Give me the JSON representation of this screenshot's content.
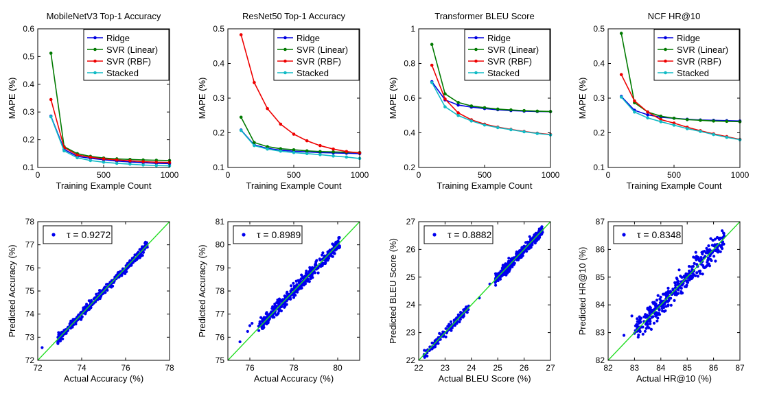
{
  "colors": {
    "Ridge": "#0000e0",
    "SVR (Linear)": "#007a00",
    "SVR (RBF)": "#ee0000",
    "Stacked": "#11bbc6",
    "scatter_points": "#0000ee",
    "identity_line": "#22dd22"
  },
  "chart_data": [
    {
      "type": "line",
      "title": "MobileNetV3 Top-1 Accuracy",
      "xlabel": "Training Example Count",
      "ylabel": "MAPE (%)",
      "xlim": [
        0,
        1000
      ],
      "ylim": [
        0.1,
        0.6
      ],
      "xticks": [
        0,
        500,
        1000
      ],
      "yticks": [
        0.1,
        0.2,
        0.3,
        0.4,
        0.5,
        0.6
      ],
      "grid": false,
      "legend": "top-right",
      "x": [
        100,
        200,
        300,
        400,
        500,
        600,
        700,
        800,
        900,
        1000
      ],
      "series": [
        {
          "name": "Ridge",
          "values": [
            0.285,
            0.165,
            0.14,
            0.133,
            0.128,
            0.123,
            0.12,
            0.117,
            0.115,
            0.114
          ]
        },
        {
          "name": "SVR (Linear)",
          "values": [
            0.512,
            0.175,
            0.15,
            0.14,
            0.134,
            0.131,
            0.129,
            0.127,
            0.126,
            0.125
          ]
        },
        {
          "name": "SVR (RBF)",
          "values": [
            0.345,
            0.172,
            0.145,
            0.137,
            0.131,
            0.127,
            0.124,
            0.121,
            0.119,
            0.118
          ]
        },
        {
          "name": "Stacked",
          "values": [
            0.283,
            0.16,
            0.135,
            0.125,
            0.119,
            0.115,
            0.112,
            0.109,
            0.107,
            0.106
          ]
        }
      ]
    },
    {
      "type": "line",
      "title": "ResNet50 Top-1 Accuracy",
      "xlabel": "Training Example Count",
      "ylabel": "MAPE (%)",
      "xlim": [
        0,
        1000
      ],
      "ylim": [
        0.1,
        0.5
      ],
      "xticks": [
        0,
        500,
        1000
      ],
      "yticks": [
        0.1,
        0.2,
        0.3,
        0.4,
        0.5
      ],
      "grid": false,
      "legend": "top-right",
      "x": [
        100,
        200,
        300,
        400,
        500,
        600,
        700,
        800,
        900,
        1000
      ],
      "series": [
        {
          "name": "Ridge",
          "values": [
            0.208,
            0.165,
            0.155,
            0.15,
            0.147,
            0.145,
            0.143,
            0.142,
            0.141,
            0.14
          ]
        },
        {
          "name": "SVR (Linear)",
          "values": [
            0.245,
            0.172,
            0.16,
            0.154,
            0.151,
            0.148,
            0.146,
            0.145,
            0.144,
            0.143
          ]
        },
        {
          "name": "SVR (RBF)",
          "values": [
            0.483,
            0.345,
            0.27,
            0.225,
            0.196,
            0.177,
            0.163,
            0.153,
            0.146,
            0.142
          ]
        },
        {
          "name": "Stacked",
          "values": [
            0.207,
            0.163,
            0.153,
            0.147,
            0.143,
            0.14,
            0.137,
            0.133,
            0.13,
            0.126
          ]
        }
      ]
    },
    {
      "type": "line",
      "title": "Transformer BLEU Score",
      "xlabel": "Training Example Count",
      "ylabel": "MAPE (%)",
      "xlim": [
        0,
        1000
      ],
      "ylim": [
        0.2,
        1.0
      ],
      "xticks": [
        0,
        500,
        1000
      ],
      "yticks": [
        0.2,
        0.4,
        0.6,
        0.8,
        1.0
      ],
      "grid": false,
      "legend": "top-right",
      "x": [
        100,
        200,
        300,
        400,
        500,
        600,
        700,
        800,
        900,
        1000
      ],
      "series": [
        {
          "name": "Ridge",
          "values": [
            0.695,
            0.59,
            0.56,
            0.548,
            0.54,
            0.533,
            0.528,
            0.525,
            0.523,
            0.522
          ]
        },
        {
          "name": "SVR (Linear)",
          "values": [
            0.91,
            0.625,
            0.575,
            0.555,
            0.545,
            0.537,
            0.532,
            0.528,
            0.525,
            0.523
          ]
        },
        {
          "name": "SVR (RBF)",
          "values": [
            0.79,
            0.595,
            0.515,
            0.475,
            0.45,
            0.433,
            0.42,
            0.408,
            0.398,
            0.39
          ]
        },
        {
          "name": "Stacked",
          "values": [
            0.69,
            0.55,
            0.5,
            0.468,
            0.445,
            0.43,
            0.418,
            0.406,
            0.396,
            0.388
          ]
        }
      ]
    },
    {
      "type": "line",
      "title": "NCF HR@10",
      "xlabel": "Training Example Count",
      "ylabel": "MAPE (%)",
      "xlim": [
        0,
        1000
      ],
      "ylim": [
        0.1,
        0.5
      ],
      "xticks": [
        0,
        500,
        1000
      ],
      "yticks": [
        0.1,
        0.2,
        0.3,
        0.4,
        0.5
      ],
      "grid": false,
      "legend": "top-right",
      "x": [
        100,
        200,
        300,
        400,
        500,
        600,
        700,
        800,
        900,
        1000
      ],
      "series": [
        {
          "name": "Ridge",
          "values": [
            0.305,
            0.265,
            0.252,
            0.245,
            0.242,
            0.239,
            0.237,
            0.236,
            0.235,
            0.234
          ]
        },
        {
          "name": "SVR (Linear)",
          "values": [
            0.487,
            0.287,
            0.26,
            0.248,
            0.242,
            0.238,
            0.236,
            0.234,
            0.233,
            0.232
          ]
        },
        {
          "name": "SVR (RBF)",
          "values": [
            0.368,
            0.292,
            0.26,
            0.238,
            0.228,
            0.216,
            0.206,
            0.197,
            0.189,
            0.181
          ]
        },
        {
          "name": "Stacked",
          "values": [
            0.303,
            0.26,
            0.243,
            0.232,
            0.222,
            0.212,
            0.204,
            0.195,
            0.187,
            0.18
          ]
        }
      ]
    },
    {
      "type": "scatter",
      "xlabel": "Actual Accuracy (%)",
      "ylabel": "Predicted Accuracy (%)",
      "xlim": [
        72,
        78
      ],
      "ylim": [
        72,
        78
      ],
      "xticks": [
        72,
        74,
        76,
        78
      ],
      "yticks": [
        72,
        73,
        74,
        75,
        76,
        77,
        78
      ],
      "grid": false,
      "legend": "top-left",
      "legend_label": "τ = 0.9272",
      "identity_line": true,
      "distribution": {
        "x_range": [
          72.9,
          77.0
        ],
        "noise_sd": 0.09,
        "count": 380
      },
      "outliers": [
        [
          72.2,
          72.55
        ],
        [
          72.95,
          73.2
        ],
        [
          73.2,
          73.3
        ]
      ]
    },
    {
      "type": "scatter",
      "xlabel": "Actual Accuracy (%)",
      "ylabel": "Predicted Accuracy (%)",
      "xlim": [
        75,
        81
      ],
      "ylim": [
        75,
        81
      ],
      "xticks": [
        76,
        78,
        80
      ],
      "yticks": [
        75,
        76,
        77,
        78,
        79,
        80,
        81
      ],
      "grid": false,
      "legend": "top-left",
      "legend_label": "τ = 0.8989",
      "identity_line": true,
      "distribution": {
        "x_range": [
          76.4,
          80.1
        ],
        "noise_sd": 0.14,
        "count": 420
      },
      "outliers": [
        [
          75.55,
          75.8
        ],
        [
          75.9,
          76.25
        ],
        [
          76.0,
          76.5
        ],
        [
          76.1,
          76.6
        ],
        [
          80.05,
          80.1
        ]
      ]
    },
    {
      "type": "scatter",
      "xlabel": "Actual BLEU Score (%)",
      "ylabel": "Predicted BLEU Score (%)",
      "xlim": [
        22,
        27
      ],
      "ylim": [
        22,
        27
      ],
      "xticks": [
        22,
        23,
        24,
        25,
        26,
        27
      ],
      "yticks": [
        22,
        23,
        24,
        25,
        26,
        27
      ],
      "grid": false,
      "legend": "top-left",
      "legend_label": "τ = 0.8882",
      "identity_line": true,
      "distribution_clusters": [
        {
          "x_range": [
            22.2,
            23.9
          ],
          "noise_sd": 0.08,
          "count": 130
        },
        {
          "x_range": [
            24.9,
            26.7
          ],
          "noise_sd": 0.09,
          "count": 380
        }
      ],
      "outliers": [
        [
          24.3,
          24.25
        ],
        [
          24.7,
          24.75
        ]
      ]
    },
    {
      "type": "scatter",
      "xlabel": "Actual HR@10 (%)",
      "ylabel": "Predicted HR@10 (%)",
      "xlim": [
        82,
        87
      ],
      "ylim": [
        82,
        87
      ],
      "xticks": [
        82,
        83,
        84,
        85,
        86,
        87
      ],
      "yticks": [
        82,
        83,
        84,
        85,
        86,
        87
      ],
      "grid": false,
      "legend": "top-left",
      "legend_label": "τ = 0.8348",
      "identity_line": true,
      "distribution": {
        "x_range": [
          83.0,
          86.4
        ],
        "noise_sd": 0.2,
        "count": 360
      },
      "outliers": [
        [
          82.6,
          82.9
        ],
        [
          82.9,
          83.6
        ],
        [
          83.1,
          83.5
        ]
      ]
    }
  ]
}
